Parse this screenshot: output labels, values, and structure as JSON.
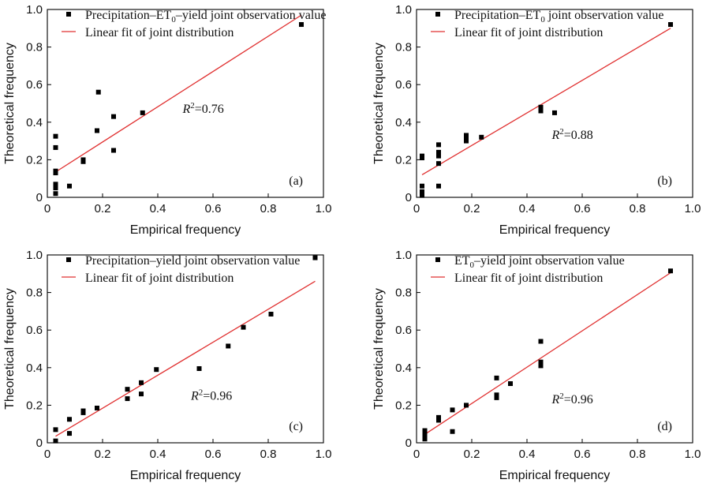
{
  "chart_data": [
    {
      "type": "scatter",
      "panel": "(a)",
      "xlabel": "Empirical frequency",
      "ylabel": "Theoretical frequency",
      "xlim": [
        0,
        1.0
      ],
      "ylim": [
        0,
        1.0
      ],
      "xticks": [
        "0",
        "0.2",
        "0.4",
        "0.6",
        "0.8",
        "1.0"
      ],
      "yticks": [
        "0",
        "0.2",
        "0.4",
        "0.6",
        "0.8",
        "1.0"
      ],
      "legend": {
        "placement": "top-left",
        "scatter_label": {
          "pre": "Precipitation–ET",
          "sub": "0",
          "post": "–yield joint observation value"
        },
        "line_label": "Linear fit of joint distribution"
      },
      "r2_label": "=0.76",
      "r2_anchor": [
        0.49,
        0.45
      ],
      "points": [
        [
          0.03,
          0.02
        ],
        [
          0.03,
          0.05
        ],
        [
          0.03,
          0.07
        ],
        [
          0.03,
          0.13
        ],
        [
          0.03,
          0.14
        ],
        [
          0.03,
          0.265
        ],
        [
          0.03,
          0.325
        ],
        [
          0.08,
          0.06
        ],
        [
          0.13,
          0.19
        ],
        [
          0.13,
          0.2
        ],
        [
          0.18,
          0.355
        ],
        [
          0.185,
          0.56
        ],
        [
          0.24,
          0.25
        ],
        [
          0.24,
          0.43
        ],
        [
          0.345,
          0.45
        ],
        [
          0.92,
          0.92
        ]
      ],
      "fit_line": {
        "x": [
          0.03,
          0.92
        ],
        "y": [
          0.135,
          0.97
        ]
      },
      "point_color": "#000000",
      "line_color": "#e03030"
    },
    {
      "type": "scatter",
      "panel": "(b)",
      "xlabel": "Empirical frequency",
      "ylabel": "Theoretical frequency",
      "xlim": [
        0,
        1.0
      ],
      "ylim": [
        0,
        1.0
      ],
      "xticks": [
        "0",
        "0.2",
        "0.4",
        "0.6",
        "0.8",
        "1.0"
      ],
      "yticks": [
        "0",
        "0.2",
        "0.4",
        "0.6",
        "0.8",
        "1.0"
      ],
      "legend": {
        "placement": "top-left",
        "scatter_label": {
          "pre": "Precipitation–ET",
          "sub": "0",
          "post": " joint observation value"
        },
        "line_label": "Linear fit of joint distribution"
      },
      "r2_label": "=0.88",
      "r2_anchor": [
        0.49,
        0.31
      ],
      "points": [
        [
          0.02,
          0.01
        ],
        [
          0.02,
          0.03
        ],
        [
          0.02,
          0.06
        ],
        [
          0.02,
          0.21
        ],
        [
          0.02,
          0.22
        ],
        [
          0.08,
          0.06
        ],
        [
          0.08,
          0.18
        ],
        [
          0.08,
          0.22
        ],
        [
          0.08,
          0.24
        ],
        [
          0.08,
          0.28
        ],
        [
          0.18,
          0.3
        ],
        [
          0.18,
          0.31
        ],
        [
          0.18,
          0.33
        ],
        [
          0.235,
          0.32
        ],
        [
          0.45,
          0.46
        ],
        [
          0.45,
          0.47
        ],
        [
          0.45,
          0.48
        ],
        [
          0.5,
          0.45
        ],
        [
          0.92,
          0.92
        ]
      ],
      "fit_line": {
        "x": [
          0.02,
          0.92
        ],
        "y": [
          0.12,
          0.9
        ]
      },
      "point_color": "#000000",
      "line_color": "#e03030"
    },
    {
      "type": "scatter",
      "panel": "(c)",
      "xlabel": "Empirical frequency",
      "ylabel": "Theoretical frequency",
      "xlim": [
        0,
        1.0
      ],
      "ylim": [
        0,
        1.0
      ],
      "xticks": [
        "0",
        "0.2",
        "0.4",
        "0.6",
        "0.8",
        "1.0"
      ],
      "yticks": [
        "0",
        "0.2",
        "0.4",
        "0.6",
        "0.8",
        "1.0"
      ],
      "legend": {
        "placement": "top-left",
        "scatter_label": {
          "pre": "Precipitation–yield joint observation value",
          "sub": "",
          "post": ""
        },
        "line_label": "Linear fit of joint distribution"
      },
      "r2_label": "=0.96",
      "r2_anchor": [
        0.52,
        0.23
      ],
      "points": [
        [
          0.03,
          0.01
        ],
        [
          0.03,
          0.07
        ],
        [
          0.08,
          0.05
        ],
        [
          0.08,
          0.125
        ],
        [
          0.13,
          0.16
        ],
        [
          0.13,
          0.17
        ],
        [
          0.18,
          0.185
        ],
        [
          0.29,
          0.235
        ],
        [
          0.29,
          0.285
        ],
        [
          0.34,
          0.26
        ],
        [
          0.34,
          0.32
        ],
        [
          0.395,
          0.39
        ],
        [
          0.55,
          0.395
        ],
        [
          0.655,
          0.515
        ],
        [
          0.71,
          0.615
        ],
        [
          0.81,
          0.685
        ],
        [
          0.97,
          0.985
        ]
      ],
      "fit_line": {
        "x": [
          0.03,
          0.97
        ],
        "y": [
          0.035,
          0.86
        ]
      },
      "point_color": "#000000",
      "line_color": "#e03030"
    },
    {
      "type": "scatter",
      "panel": "(d)",
      "xlabel": "Empirical frequency",
      "ylabel": "Theoretical frequency",
      "xlim": [
        0,
        1.0
      ],
      "ylim": [
        0,
        1.0
      ],
      "xticks": [
        "0",
        "0.2",
        "0.4",
        "0.6",
        "0.8",
        "1.0"
      ],
      "yticks": [
        "0",
        "0.2",
        "0.4",
        "0.6",
        "0.8",
        "1.0"
      ],
      "legend": {
        "placement": "top-left",
        "scatter_label": {
          "pre": "ET",
          "sub": "0",
          "post": "–yield joint observation value"
        },
        "line_label": "Linear fit of joint distribution"
      },
      "r2_label": "=0.96",
      "r2_anchor": [
        0.49,
        0.21
      ],
      "points": [
        [
          0.03,
          0.02
        ],
        [
          0.03,
          0.04
        ],
        [
          0.03,
          0.06
        ],
        [
          0.03,
          0.065
        ],
        [
          0.08,
          0.12
        ],
        [
          0.08,
          0.135
        ],
        [
          0.13,
          0.06
        ],
        [
          0.13,
          0.175
        ],
        [
          0.18,
          0.2
        ],
        [
          0.29,
          0.24
        ],
        [
          0.29,
          0.255
        ],
        [
          0.29,
          0.345
        ],
        [
          0.34,
          0.315
        ],
        [
          0.45,
          0.41
        ],
        [
          0.45,
          0.42
        ],
        [
          0.45,
          0.43
        ],
        [
          0.45,
          0.54
        ],
        [
          0.92,
          0.915
        ]
      ],
      "fit_line": {
        "x": [
          0.03,
          0.92
        ],
        "y": [
          0.045,
          0.905
        ]
      },
      "point_color": "#000000",
      "line_color": "#e03030"
    }
  ]
}
